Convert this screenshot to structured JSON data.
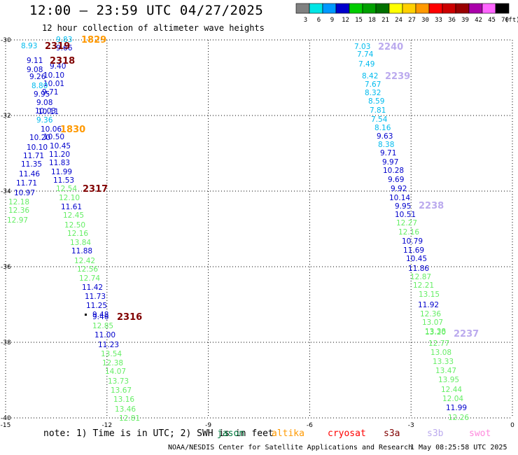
{
  "header": {
    "title": "12:00 – 23:59 UTC 04/27/2025",
    "subtitle": "12 hour collection of altimeter wave heights"
  },
  "colorbar": {
    "unit": "(ft)",
    "bins": [
      {
        "label": "3",
        "color": "#808080"
      },
      {
        "label": "6",
        "color": "#00e5e5"
      },
      {
        "label": "9",
        "color": "#0099ff"
      },
      {
        "label": "12",
        "color": "#0000cc"
      },
      {
        "label": "15",
        "color": "#00cc00"
      },
      {
        "label": "18",
        "color": "#00a000"
      },
      {
        "label": "21",
        "color": "#007000"
      },
      {
        "label": "24",
        "color": "#ffff00"
      },
      {
        "label": "27",
        "color": "#ffd000"
      },
      {
        "label": "30",
        "color": "#ff9900"
      },
      {
        "label": "33",
        "color": "#ff0000"
      },
      {
        "label": "36",
        "color": "#cc0000"
      },
      {
        "label": "39",
        "color": "#990000"
      },
      {
        "label": "42",
        "color": "#aa00aa"
      },
      {
        "label": "45",
        "color": "#ff66ff"
      },
      {
        "label": "70",
        "color": "#000000"
      }
    ]
  },
  "axes": {
    "lon_ticks": [
      "-15",
      "-12",
      "-9",
      "-6",
      "-3",
      "0"
    ],
    "lat_ticks": [
      "-30",
      "-32",
      "-34",
      "-36",
      "-38",
      "-40"
    ]
  },
  "map": {
    "colors": {
      "c_lt": "#00bbee",
      "c_bl": "#0000cc",
      "c_gr": "#66ee66",
      "jason": "#007a3d",
      "altika": "#ff9900",
      "cryosat": "#ff0000",
      "s3a": "#800000",
      "s3b": "#bbaaee",
      "swot": "#ff88dd"
    },
    "left_track": [
      {
        "text": "8.93",
        "c": "c_lt"
      },
      {
        "text": "9.83",
        "c": "c_lt"
      },
      {
        "text": "9.66",
        "c": "c_bl"
      },
      {
        "text": "9.40",
        "c": "c_bl"
      },
      {
        "text": "9.11",
        "c": "c_bl"
      },
      {
        "text": "9.08",
        "c": "c_bl"
      },
      {
        "text": "10.10",
        "c": "c_bl"
      },
      {
        "text": "9.26",
        "c": "c_bl"
      },
      {
        "text": "10.01",
        "c": "c_bl"
      },
      {
        "text": "8.80",
        "c": "c_lt"
      },
      {
        "text": "9.71",
        "c": "c_bl"
      },
      {
        "text": "9.95",
        "c": "c_bl"
      },
      {
        "text": "9.08",
        "c": "c_bl"
      },
      {
        "text": "10.03",
        "c": "c_bl"
      },
      {
        "text": "10.11",
        "c": "c_bl"
      },
      {
        "text": "9.36",
        "c": "c_lt"
      },
      {
        "text": "10.06",
        "c": "c_bl"
      },
      {
        "text": "10.50",
        "c": "c_bl"
      },
      {
        "text": "10.20",
        "c": "c_bl"
      },
      {
        "text": "10.10",
        "c": "c_bl"
      },
      {
        "text": "10.45",
        "c": "c_bl"
      },
      {
        "text": "11.71",
        "c": "c_bl"
      },
      {
        "text": "11.20",
        "c": "c_bl"
      },
      {
        "text": "11.35",
        "c": "c_bl"
      },
      {
        "text": "11.83",
        "c": "c_bl"
      },
      {
        "text": "11.46",
        "c": "c_bl"
      },
      {
        "text": "11.99",
        "c": "c_bl"
      },
      {
        "text": "11.71",
        "c": "c_bl"
      },
      {
        "text": "11.53",
        "c": "c_bl"
      },
      {
        "text": "10.97",
        "c": "c_bl"
      },
      {
        "text": "12.54",
        "c": "c_gr"
      },
      {
        "text": "12.18",
        "c": "c_gr"
      },
      {
        "text": "12.10",
        "c": "c_gr"
      },
      {
        "text": "12.36",
        "c": "c_gr"
      },
      {
        "text": "11.61",
        "c": "c_bl"
      },
      {
        "text": "12.97",
        "c": "c_gr"
      },
      {
        "text": "12.45",
        "c": "c_gr"
      },
      {
        "text": "12.50",
        "c": "c_gr"
      },
      {
        "text": "12.16",
        "c": "c_gr"
      },
      {
        "text": "13.84",
        "c": "c_gr"
      },
      {
        "text": "11.88",
        "c": "c_bl"
      },
      {
        "text": "12.42",
        "c": "c_gr"
      },
      {
        "text": "12.56",
        "c": "c_gr"
      },
      {
        "text": "12.74",
        "c": "c_gr"
      },
      {
        "text": "11.42",
        "c": "c_bl"
      },
      {
        "text": "11.73",
        "c": "c_bl"
      },
      {
        "text": "11.25",
        "c": "c_bl"
      },
      {
        "text": "9.48",
        "c": "c_bl"
      },
      {
        "text": "9.46",
        "c": "c_bl"
      },
      {
        "text": "12.85",
        "c": "c_gr"
      },
      {
        "text": "11.00",
        "c": "c_bl"
      },
      {
        "text": "11.23",
        "c": "c_bl"
      },
      {
        "text": "13.54",
        "c": "c_gr"
      },
      {
        "text": "12.38",
        "c": "c_gr"
      },
      {
        "text": "14.07",
        "c": "c_gr"
      },
      {
        "text": "13.73",
        "c": "c_gr"
      },
      {
        "text": "13.67",
        "c": "c_gr"
      },
      {
        "text": "13.16",
        "c": "c_gr"
      },
      {
        "text": "13.46",
        "c": "c_gr"
      },
      {
        "text": "12.81",
        "c": "c_gr"
      }
    ],
    "right_track": [
      {
        "text": "7.03",
        "c": "c_lt"
      },
      {
        "text": "7.74",
        "c": "c_lt"
      },
      {
        "text": "7.49",
        "c": "c_lt"
      },
      {
        "text": "8.42",
        "c": "c_lt"
      },
      {
        "text": "7.67",
        "c": "c_lt"
      },
      {
        "text": "8.32",
        "c": "c_lt"
      },
      {
        "text": "8.59",
        "c": "c_lt"
      },
      {
        "text": "7.81",
        "c": "c_lt"
      },
      {
        "text": "7.54",
        "c": "c_lt"
      },
      {
        "text": "8.16",
        "c": "c_lt"
      },
      {
        "text": "9.63",
        "c": "c_bl"
      },
      {
        "text": "8.38",
        "c": "c_lt"
      },
      {
        "text": "9.71",
        "c": "c_bl"
      },
      {
        "text": "9.97",
        "c": "c_bl"
      },
      {
        "text": "10.28",
        "c": "c_bl"
      },
      {
        "text": "9.69",
        "c": "c_bl"
      },
      {
        "text": "9.92",
        "c": "c_bl"
      },
      {
        "text": "10.14",
        "c": "c_bl"
      },
      {
        "text": "9.95",
        "c": "c_bl"
      },
      {
        "text": "10.51",
        "c": "c_bl"
      },
      {
        "text": "12.27",
        "c": "c_gr"
      },
      {
        "text": "12.16",
        "c": "c_gr"
      },
      {
        "text": "10.79",
        "c": "c_bl"
      },
      {
        "text": "11.69",
        "c": "c_bl"
      },
      {
        "text": "10.45",
        "c": "c_bl"
      },
      {
        "text": "11.86",
        "c": "c_bl"
      },
      {
        "text": "12.87",
        "c": "c_gr"
      },
      {
        "text": "12.21",
        "c": "c_gr"
      },
      {
        "text": "13.15",
        "c": "c_gr"
      },
      {
        "text": "11.92",
        "c": "c_bl"
      },
      {
        "text": "12.36",
        "c": "c_gr"
      },
      {
        "text": "13.07",
        "c": "c_gr"
      },
      {
        "text": "13.38",
        "c": "c_gr"
      },
      {
        "text": "13.20",
        "c": "c_gr"
      },
      {
        "text": "12.77",
        "c": "c_gr"
      },
      {
        "text": "13.08",
        "c": "c_gr"
      },
      {
        "text": "13.33",
        "c": "c_gr"
      },
      {
        "text": "13.47",
        "c": "c_gr"
      },
      {
        "text": "13.95",
        "c": "c_gr"
      },
      {
        "text": "12.44",
        "c": "c_gr"
      },
      {
        "text": "12.04",
        "c": "c_gr"
      },
      {
        "text": "11.99",
        "c": "c_bl"
      },
      {
        "text": "12.26",
        "c": "c_gr"
      }
    ],
    "pass_labels": [
      {
        "text": "1829",
        "c": "altika"
      },
      {
        "text": "2319",
        "c": "s3a"
      },
      {
        "text": "2318",
        "c": "s3a"
      },
      {
        "text": "1830",
        "c": "altika"
      },
      {
        "text": "2317",
        "c": "s3a"
      },
      {
        "text": "2316",
        "c": "s3a"
      },
      {
        "text": "2240",
        "c": "s3b"
      },
      {
        "text": "2239",
        "c": "s3b"
      },
      {
        "text": "2238",
        "c": "s3b"
      },
      {
        "text": "2237",
        "c": "s3b"
      }
    ]
  },
  "footer": {
    "note": "note: 1) Time is in UTC; 2) SWH is in feet",
    "satellites": [
      {
        "name": "jason",
        "c": "jason"
      },
      {
        "name": "altika",
        "c": "altika"
      },
      {
        "name": "cryosat",
        "c": "cryosat"
      },
      {
        "name": "s3a",
        "c": "s3a"
      },
      {
        "name": "s3b",
        "c": "s3b"
      },
      {
        "name": "swot",
        "c": "swot"
      }
    ],
    "credit": "NOAA/NESDIS Center for Satellite Applications and Research",
    "timestamp": "1 May 08:25:58 UTC 2025"
  }
}
